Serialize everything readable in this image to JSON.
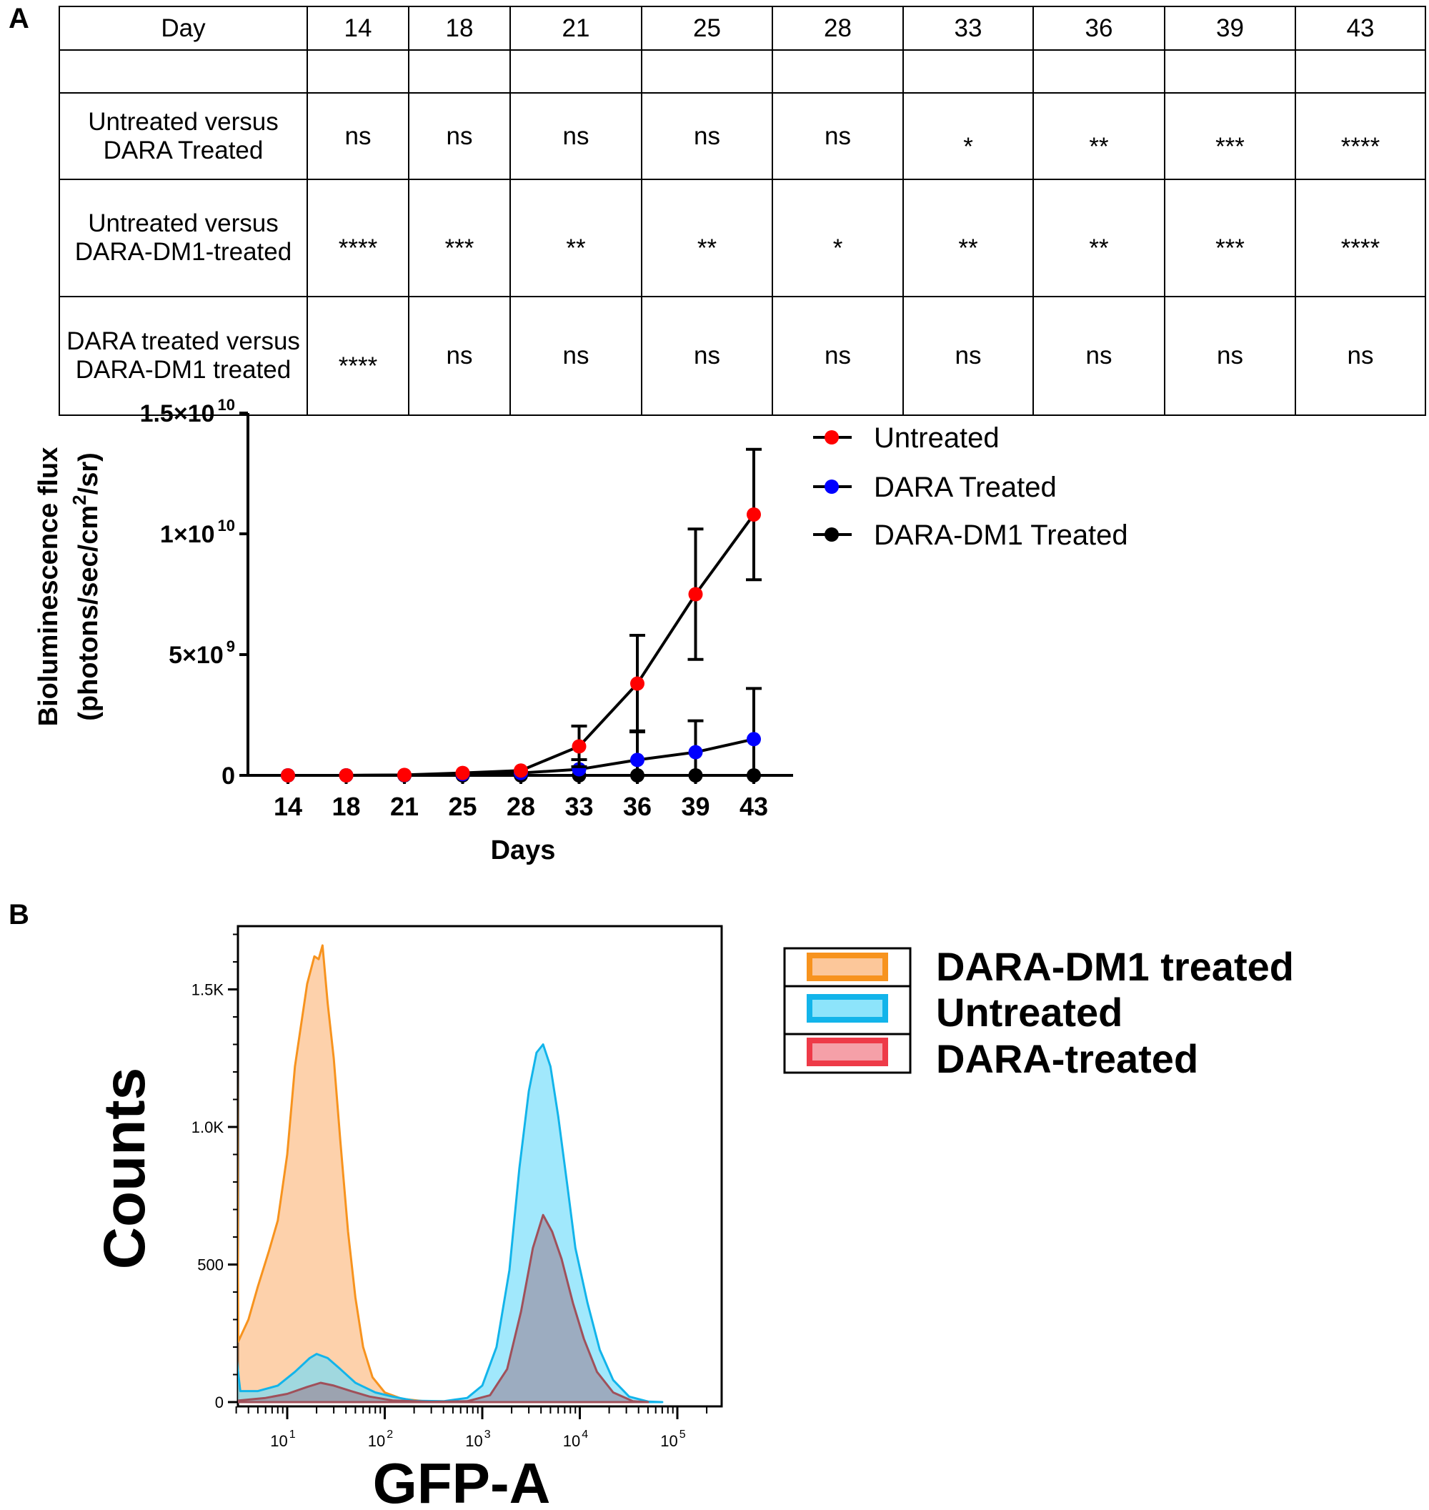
{
  "panels": {
    "a": "A",
    "b": "B"
  },
  "table": {
    "header": [
      "Day",
      "14",
      "18",
      "21",
      "25",
      "28",
      "33",
      "36",
      "39",
      "43"
    ],
    "rows": [
      {
        "label": "",
        "cells": [
          "",
          "",
          "",
          "",
          "",
          "",
          "",
          "",
          ""
        ]
      },
      {
        "label": "Untreated versus DARA Treated",
        "cells": [
          "ns",
          "ns",
          "ns",
          "ns",
          "ns",
          "*",
          "**",
          "***",
          "****"
        ]
      },
      {
        "label": "Untreated versus DARA-DM1-treated",
        "cells": [
          "****",
          "***",
          "**",
          "**",
          "*",
          "**",
          "**",
          "***",
          "****"
        ]
      },
      {
        "label": "DARA treated versus DARA-DM1 treated",
        "cells": [
          "****",
          "ns",
          "ns",
          "ns",
          "ns",
          "ns",
          "ns",
          "ns",
          "ns"
        ]
      }
    ]
  },
  "chart_data": [
    {
      "type": "line",
      "xlabel": "Days",
      "ylabel_line1": "Bioluminescence flux",
      "ylabel_line2_pre": "(photons/sec/cm",
      "ylabel_line2_sup": "2",
      "ylabel_line2_post": "/sr)",
      "categories": [
        "14",
        "18",
        "21",
        "25",
        "28",
        "33",
        "36",
        "39",
        "43"
      ],
      "ylim": [
        0,
        15000000000.0
      ],
      "yticks": [
        {
          "value": 0,
          "base": "0",
          "exp": ""
        },
        {
          "value": 5000000000.0,
          "base": "5×10",
          "exp": "9"
        },
        {
          "value": 10000000000.0,
          "base": "1×10",
          "exp": "10"
        },
        {
          "value": 15000000000.0,
          "base": "1.5×10",
          "exp": "10"
        }
      ],
      "legend_position": "top-right",
      "series": [
        {
          "name": "Untreated",
          "color": "#ff0000",
          "values": [
            0,
            0,
            20000000.0,
            100000000.0,
            200000000.0,
            1200000000.0,
            3800000000.0,
            7500000000.0,
            10800000000.0
          ],
          "errors": [
            0,
            0,
            0,
            0,
            0,
            840000000.0,
            2000000000.0,
            2700000000.0,
            2700000000.0
          ]
        },
        {
          "name": "DARA Treated",
          "color": "#0000ff",
          "values": [
            0,
            0,
            10000000.0,
            50000000.0,
            100000000.0,
            250000000.0,
            640000000.0,
            960000000.0,
            1500000000.0
          ],
          "errors": [
            0,
            0,
            0,
            0,
            0,
            400000000.0,
            1200000000.0,
            1300000000.0,
            2100000000.0
          ]
        },
        {
          "name": "DARA-DM1 Treated",
          "color": "#000000",
          "values": [
            0,
            0,
            0,
            0,
            0,
            0,
            0,
            0,
            0
          ],
          "errors": [
            0,
            0,
            0,
            0,
            0,
            0,
            0,
            0,
            0
          ]
        }
      ]
    },
    {
      "type": "area",
      "xlabel": "GFP-A",
      "ylabel": "Counts",
      "xscale": "log",
      "xlim": [
        3,
        290000
      ],
      "ylim": [
        0,
        1730
      ],
      "xticks": [
        {
          "value": 10,
          "exp": "1"
        },
        {
          "value": 100,
          "exp": "2"
        },
        {
          "value": 1000,
          "exp": "3"
        },
        {
          "value": 10000,
          "exp": "4"
        },
        {
          "value": 100000,
          "exp": "5"
        }
      ],
      "xtick_base": "10",
      "yticks": [
        {
          "value": 0,
          "label": "0"
        },
        {
          "value": 500,
          "label": "500"
        },
        {
          "value": 1000,
          "label": "1.0K"
        },
        {
          "value": 1500,
          "label": "1.5K"
        }
      ],
      "legend_position": "right",
      "series": [
        {
          "name": "DARA-DM1 treated",
          "stroke": "#f7931e",
          "fill": "rgba(252,172,102,0.55)",
          "points": [
            [
              3,
              1700
            ],
            [
              3.15,
              220
            ],
            [
              4,
              300
            ],
            [
              5,
              420
            ],
            [
              6.5,
              550
            ],
            [
              8,
              660
            ],
            [
              10,
              900
            ],
            [
              12,
              1220
            ],
            [
              14,
              1380
            ],
            [
              16,
              1520
            ],
            [
              19,
              1620
            ],
            [
              21,
              1610
            ],
            [
              23,
              1660
            ],
            [
              26,
              1450
            ],
            [
              30,
              1250
            ],
            [
              35,
              950
            ],
            [
              42,
              620
            ],
            [
              50,
              380
            ],
            [
              60,
              200
            ],
            [
              75,
              90
            ],
            [
              100,
              35
            ],
            [
              150,
              12
            ],
            [
              250,
              3
            ],
            [
              400,
              0
            ]
          ]
        },
        {
          "name": "Untreated",
          "stroke": "#12b4ea",
          "fill": "rgba(110,220,250,0.65)",
          "points": [
            [
              3,
              170
            ],
            [
              3.3,
              40
            ],
            [
              5,
              40
            ],
            [
              8,
              60
            ],
            [
              12,
              110
            ],
            [
              17,
              160
            ],
            [
              20,
              175
            ],
            [
              26,
              160
            ],
            [
              35,
              120
            ],
            [
              50,
              70
            ],
            [
              80,
              35
            ],
            [
              120,
              20
            ],
            [
              200,
              5
            ],
            [
              400,
              3
            ],
            [
              700,
              15
            ],
            [
              1000,
              60
            ],
            [
              1400,
              200
            ],
            [
              1900,
              480
            ],
            [
              2400,
              850
            ],
            [
              3000,
              1130
            ],
            [
              3600,
              1270
            ],
            [
              4200,
              1300
            ],
            [
              5000,
              1220
            ],
            [
              6000,
              1040
            ],
            [
              7500,
              780
            ],
            [
              9000,
              560
            ],
            [
              12000,
              360
            ],
            [
              16000,
              190
            ],
            [
              22000,
              80
            ],
            [
              32000,
              20
            ],
            [
              50000,
              2
            ],
            [
              70000,
              0
            ]
          ]
        },
        {
          "name": "DARA-treated",
          "stroke": "#a0505a",
          "fill": "rgba(150,100,120,0.45)",
          "points": [
            [
              3,
              5
            ],
            [
              6,
              15
            ],
            [
              10,
              30
            ],
            [
              16,
              55
            ],
            [
              22,
              70
            ],
            [
              30,
              60
            ],
            [
              45,
              40
            ],
            [
              70,
              20
            ],
            [
              120,
              6
            ],
            [
              300,
              1
            ],
            [
              700,
              3
            ],
            [
              1200,
              25
            ],
            [
              1800,
              120
            ],
            [
              2500,
              330
            ],
            [
              3300,
              560
            ],
            [
              4200,
              680
            ],
            [
              5200,
              620
            ],
            [
              6500,
              520
            ],
            [
              8500,
              360
            ],
            [
              11000,
              230
            ],
            [
              15000,
              110
            ],
            [
              22000,
              35
            ],
            [
              35000,
              3
            ],
            [
              50000,
              0
            ]
          ]
        }
      ]
    }
  ]
}
